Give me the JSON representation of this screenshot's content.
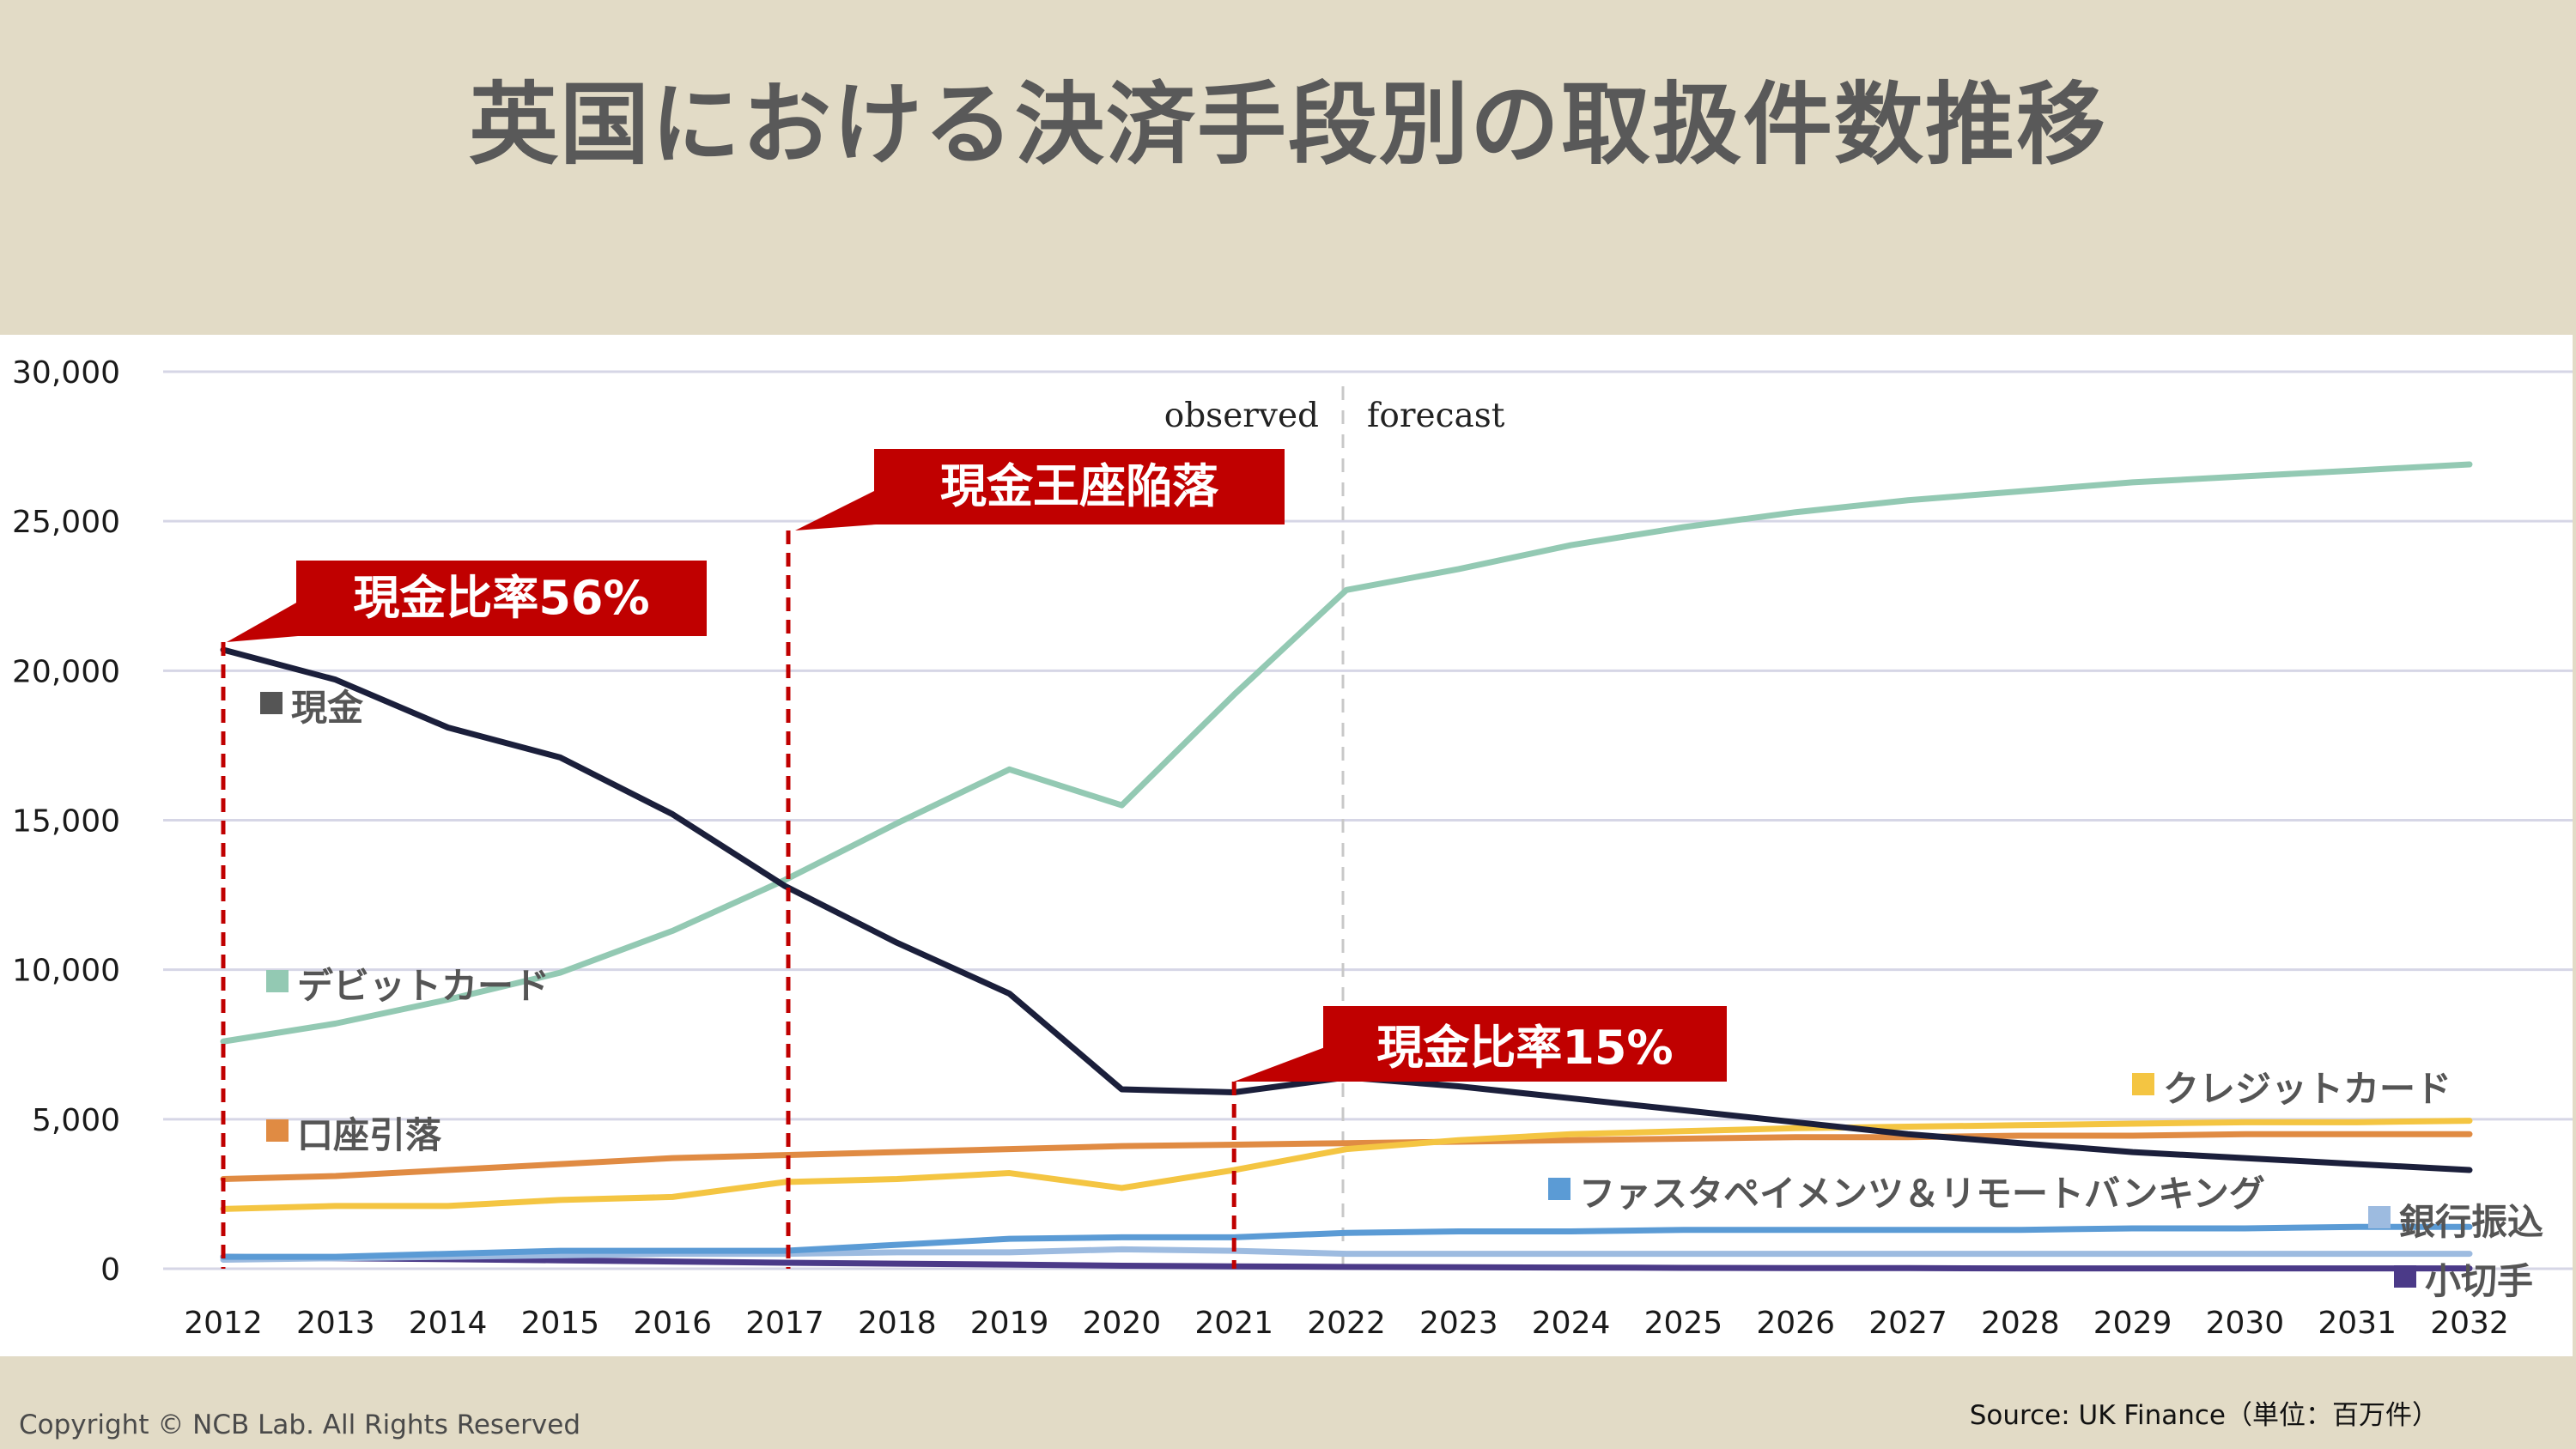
{
  "title": "英国における決済手段別の取扱件数推移",
  "footer": {
    "copyright": "Copyright © NCB Lab. All Rights Reserved",
    "source": "Source: UK Finance（単位：百万件）"
  },
  "chart_data": {
    "type": "line",
    "title": "",
    "xlabel": "",
    "ylabel": "",
    "ylim": [
      0,
      30000
    ],
    "yticks": [
      "0",
      "5,000",
      "10,000",
      "15,000",
      "20,000",
      "25,000",
      "30,000"
    ],
    "x": [
      "2012",
      "2013",
      "2014",
      "2015",
      "2016",
      "2017",
      "2018",
      "2019",
      "2020",
      "2021",
      "2022",
      "2023",
      "2024",
      "2025",
      "2026",
      "2027",
      "2028",
      "2029",
      "2030",
      "2031",
      "2032"
    ],
    "divider": {
      "between": [
        "2021",
        "2022"
      ],
      "left_label": "observed",
      "right_label": "forecast"
    },
    "grid": true,
    "series": [
      {
        "name": "現金",
        "color": "#1b1f3b",
        "values": [
          20700,
          19700,
          18100,
          17100,
          15200,
          12800,
          10900,
          9200,
          6000,
          5900,
          6400,
          6100,
          5700,
          5300,
          4900,
          4500,
          4200,
          3900,
          3700,
          3500,
          3300
        ]
      },
      {
        "name": "デビットカード",
        "color": "#93c9b3",
        "values": [
          7600,
          8200,
          9000,
          9900,
          11300,
          13000,
          14900,
          16700,
          15500,
          19200,
          22700,
          23400,
          24200,
          24800,
          25300,
          25700,
          26000,
          26300,
          26500,
          26700,
          26900
        ]
      },
      {
        "name": "口座引落",
        "color": "#e08b43",
        "values": [
          3000,
          3100,
          3300,
          3500,
          3700,
          3800,
          3900,
          4000,
          4100,
          4150,
          4200,
          4250,
          4300,
          4350,
          4400,
          4400,
          4450,
          4450,
          4500,
          4500,
          4500
        ]
      },
      {
        "name": "クレジットカード",
        "color": "#f4c542",
        "values": [
          2000,
          2100,
          2100,
          2300,
          2400,
          2900,
          3000,
          3200,
          2700,
          3300,
          4000,
          4300,
          4500,
          4600,
          4700,
          4750,
          4800,
          4850,
          4900,
          4900,
          4950
        ]
      },
      {
        "name": "ファスタペイメンツ＆リモートバンキング",
        "color": "#5b9bd5",
        "values": [
          400,
          400,
          500,
          600,
          600,
          600,
          800,
          1000,
          1050,
          1050,
          1200,
          1250,
          1250,
          1300,
          1300,
          1300,
          1300,
          1350,
          1350,
          1400,
          1400
        ]
      },
      {
        "name": "銀行振込",
        "color": "#9dbbe0",
        "values": [
          300,
          350,
          400,
          450,
          500,
          500,
          550,
          550,
          650,
          600,
          500,
          500,
          500,
          500,
          500,
          500,
          500,
          500,
          500,
          500,
          500
        ]
      },
      {
        "name": "小切手",
        "color": "#4b3a88",
        "values": [
          400,
          350,
          320,
          280,
          240,
          200,
          170,
          140,
          100,
          80,
          60,
          50,
          40,
          30,
          20,
          20,
          10,
          10,
          10,
          10,
          10
        ]
      }
    ],
    "annotations": [
      {
        "text": "現金比率56%",
        "year": "2012"
      },
      {
        "text": "現金王座陥落",
        "year": "2017"
      },
      {
        "text": "現金比率15%",
        "year": "2021"
      }
    ]
  }
}
